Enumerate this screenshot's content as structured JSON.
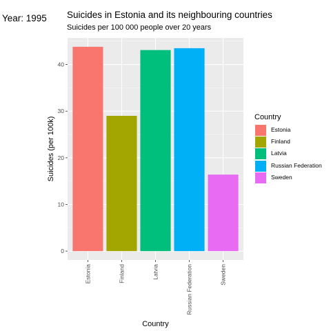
{
  "header": {
    "year": "Year: 1995",
    "title": "Suicides in Estonia and its neighbouring countries",
    "subtitle": "Suicides per 100 000 people over 20 years"
  },
  "legend": {
    "title": "Country",
    "items": [
      {
        "label": "Estonia",
        "color": "#F8766D"
      },
      {
        "label": "Finland",
        "color": "#A3A500"
      },
      {
        "label": "Latvia",
        "color": "#00BF7D"
      },
      {
        "label": "Russian Federation",
        "color": "#00B0F6"
      },
      {
        "label": "Sweden",
        "color": "#E76BF3"
      }
    ]
  },
  "chart_data": {
    "type": "bar",
    "title": "Suicides in Estonia and its neighbouring countries",
    "subtitle": "Suicides per 100 000 people over 20 years",
    "xlabel": "Country",
    "ylabel": "Suicides (per 100k)",
    "categories": [
      "Estonia",
      "Finland",
      "Latvia",
      "Russian Federation",
      "Sweden"
    ],
    "values": [
      43.8,
      29.0,
      43.1,
      43.5,
      16.4
    ],
    "colors": [
      "#F8766D",
      "#A3A500",
      "#00BF7D",
      "#00B0F6",
      "#E76BF3"
    ],
    "yticks": [
      0,
      10,
      20,
      30,
      40
    ],
    "ylim": [
      -1.9,
      45.7
    ],
    "grid": true,
    "legend_position": "right",
    "panel_background": "#EBEBEB"
  }
}
